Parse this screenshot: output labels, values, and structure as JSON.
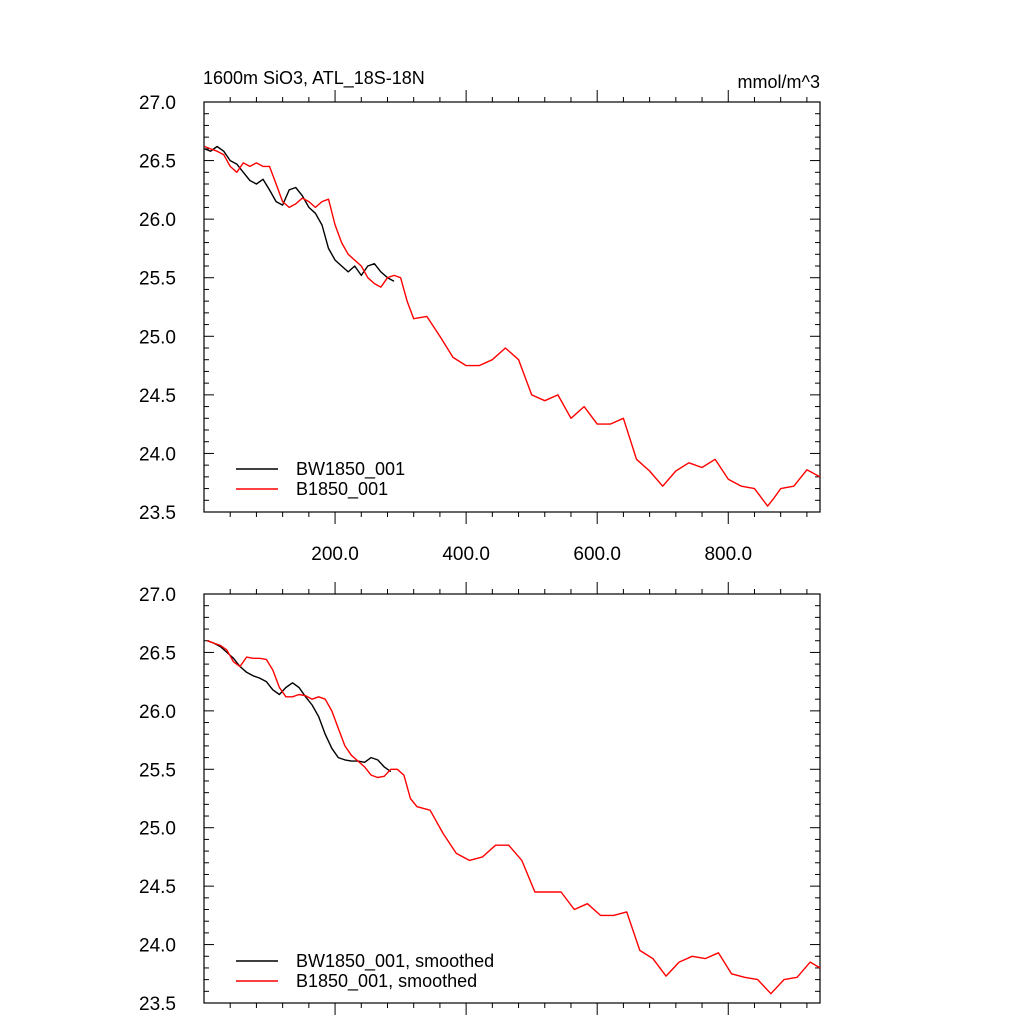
{
  "figure": {
    "title_left": "1600m SiO3, ATL_18S-18N",
    "title_right": "mmol/m^3"
  },
  "chart_data": [
    {
      "type": "line",
      "panel": "top",
      "xlim": [
        0,
        940
      ],
      "ylim": [
        23.5,
        27.0
      ],
      "x_tick_values": [
        200,
        400,
        600,
        800
      ],
      "x_tick_labels": [
        "200.0",
        "400.0",
        "600.0",
        "800.0"
      ],
      "y_tick_values": [
        23.5,
        24.0,
        24.5,
        25.0,
        25.5,
        26.0,
        26.5,
        27.0
      ],
      "y_tick_labels": [
        "23.5",
        "24.0",
        "24.5",
        "25.0",
        "25.5",
        "26.0",
        "26.5",
        "27.0"
      ],
      "legend_position": "lower-left",
      "series": [
        {
          "name": "BW1850_001",
          "color": "#000000",
          "x": [
            1,
            10,
            20,
            30,
            40,
            50,
            60,
            70,
            80,
            90,
            100,
            110,
            120,
            130,
            140,
            150,
            160,
            170,
            180,
            190,
            200,
            210,
            220,
            230,
            240,
            250,
            260,
            270,
            280,
            290
          ],
          "y": [
            26.6,
            26.58,
            26.62,
            26.58,
            26.5,
            26.47,
            26.4,
            26.33,
            26.3,
            26.34,
            26.25,
            26.15,
            26.12,
            26.25,
            26.27,
            26.2,
            26.1,
            26.05,
            25.95,
            25.75,
            25.65,
            25.6,
            25.55,
            25.6,
            25.52,
            25.6,
            25.62,
            25.55,
            25.5,
            25.47
          ]
        },
        {
          "name": "B1850_001",
          "color": "#ff0000",
          "x": [
            1,
            10,
            20,
            30,
            40,
            50,
            60,
            70,
            80,
            90,
            100,
            110,
            120,
            130,
            140,
            150,
            160,
            170,
            180,
            190,
            200,
            210,
            220,
            230,
            240,
            250,
            260,
            270,
            280,
            290,
            300,
            310,
            320,
            340,
            360,
            380,
            400,
            420,
            440,
            460,
            480,
            500,
            520,
            540,
            560,
            580,
            600,
            620,
            640,
            660,
            680,
            700,
            720,
            740,
            760,
            780,
            800,
            820,
            840,
            860,
            870,
            880,
            900,
            920,
            940
          ],
          "y": [
            26.62,
            26.6,
            26.58,
            26.55,
            26.45,
            26.4,
            26.48,
            26.45,
            26.48,
            26.45,
            26.45,
            26.3,
            26.15,
            26.1,
            26.13,
            26.18,
            26.15,
            26.1,
            26.15,
            26.17,
            25.95,
            25.8,
            25.7,
            25.65,
            25.6,
            25.5,
            25.45,
            25.42,
            25.5,
            25.52,
            25.5,
            25.3,
            25.15,
            25.17,
            25.0,
            24.82,
            24.75,
            24.75,
            24.8,
            24.9,
            24.8,
            24.5,
            24.45,
            24.5,
            24.3,
            24.4,
            24.25,
            24.25,
            24.3,
            23.95,
            23.85,
            23.72,
            23.85,
            23.92,
            23.88,
            23.95,
            23.78,
            23.72,
            23.7,
            23.55,
            23.62,
            23.7,
            23.72,
            23.86,
            23.8
          ]
        }
      ]
    },
    {
      "type": "line",
      "panel": "bottom",
      "xlim": [
        0,
        940
      ],
      "ylim": [
        23.5,
        27.0
      ],
      "x_tick_values": [
        200,
        400,
        600,
        800
      ],
      "x_tick_labels": [],
      "y_tick_values": [
        23.5,
        24.0,
        24.5,
        25.0,
        25.5,
        26.0,
        26.5,
        27.0
      ],
      "y_tick_labels": [
        "23.5",
        "24.0",
        "24.5",
        "25.0",
        "25.5",
        "26.0",
        "26.5",
        "27.0"
      ],
      "legend_position": "lower-left",
      "series": [
        {
          "name": "BW1850_001, smoothed",
          "color": "#000000",
          "x": [
            5,
            15,
            25,
            35,
            45,
            55,
            65,
            75,
            85,
            95,
            105,
            115,
            125,
            135,
            145,
            155,
            165,
            175,
            185,
            195,
            205,
            215,
            225,
            235,
            245,
            255,
            265,
            275,
            285
          ],
          "y": [
            26.6,
            26.58,
            26.55,
            26.5,
            26.45,
            26.38,
            26.33,
            26.3,
            26.28,
            26.25,
            26.18,
            26.14,
            26.2,
            26.24,
            26.2,
            26.12,
            26.05,
            25.95,
            25.8,
            25.68,
            25.6,
            25.58,
            25.57,
            25.57,
            25.56,
            25.6,
            25.58,
            25.52,
            25.48
          ]
        },
        {
          "name": "B1850_001, smoothed",
          "color": "#ff0000",
          "x": [
            5,
            15,
            25,
            35,
            45,
            55,
            65,
            75,
            85,
            95,
            105,
            115,
            125,
            135,
            145,
            155,
            165,
            175,
            185,
            195,
            205,
            215,
            225,
            235,
            245,
            255,
            265,
            275,
            285,
            295,
            305,
            315,
            325,
            345,
            365,
            385,
            405,
            425,
            445,
            465,
            485,
            505,
            525,
            545,
            565,
            585,
            605,
            625,
            645,
            665,
            685,
            705,
            725,
            745,
            765,
            785,
            805,
            825,
            845,
            865,
            885,
            905,
            925,
            940
          ],
          "y": [
            26.6,
            26.58,
            26.56,
            26.52,
            26.42,
            26.38,
            26.46,
            26.45,
            26.45,
            26.44,
            26.35,
            26.2,
            26.12,
            26.12,
            26.14,
            26.13,
            26.1,
            26.12,
            26.1,
            26.0,
            25.85,
            25.7,
            25.62,
            25.57,
            25.52,
            25.45,
            25.43,
            25.44,
            25.5,
            25.5,
            25.45,
            25.25,
            25.18,
            25.15,
            24.95,
            24.78,
            24.72,
            24.75,
            24.85,
            24.85,
            24.72,
            24.45,
            24.45,
            24.45,
            24.3,
            24.35,
            24.25,
            24.25,
            24.28,
            23.95,
            23.88,
            23.73,
            23.85,
            23.9,
            23.88,
            23.93,
            23.75,
            23.72,
            23.7,
            23.58,
            23.7,
            23.72,
            23.85,
            23.8
          ]
        }
      ]
    }
  ]
}
